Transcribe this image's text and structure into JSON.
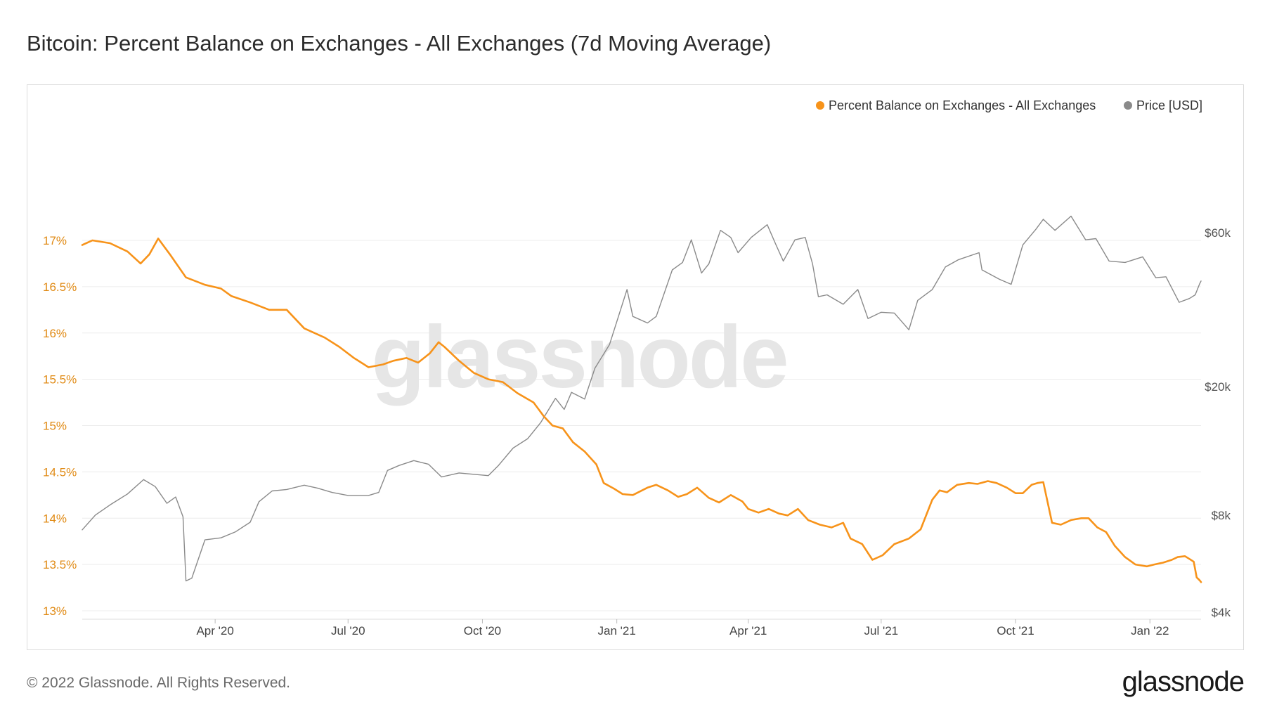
{
  "page": {
    "title": "Bitcoin: Percent Balance on Exchanges - All Exchanges (7d Moving Average)",
    "footer": "© 2022 Glassnode. All Rights Reserved.",
    "logo": "glassnode",
    "watermark": "glassnode"
  },
  "chart_data": {
    "type": "line",
    "title": "Bitcoin: Percent Balance on Exchanges - All Exchanges (7d Moving Average)",
    "xlim": [
      "2020-01-01",
      "2022-02-05"
    ],
    "x_ticks": [
      {
        "date": "2020-04-01",
        "label": "Apr '20"
      },
      {
        "date": "2020-07-01",
        "label": "Jul '20"
      },
      {
        "date": "2020-10-01",
        "label": "Oct '20"
      },
      {
        "date": "2021-01-01",
        "label": "Jan '21"
      },
      {
        "date": "2021-04-01",
        "label": "Apr '21"
      },
      {
        "date": "2021-07-01",
        "label": "Jul '21"
      },
      {
        "date": "2021-10-01",
        "label": "Oct '21"
      },
      {
        "date": "2022-01-01",
        "label": "Jan '22"
      }
    ],
    "y_left": {
      "min": 13.0,
      "max": 17.0,
      "unit": "%",
      "ticks": [
        {
          "value": 13.0,
          "label": "13%"
        },
        {
          "value": 13.5,
          "label": "13.5%"
        },
        {
          "value": 14.0,
          "label": "14%"
        },
        {
          "value": 14.5,
          "label": "14.5%"
        },
        {
          "value": 15.0,
          "label": "15%"
        },
        {
          "value": 15.5,
          "label": "15.5%"
        },
        {
          "value": 16.0,
          "label": "16%"
        },
        {
          "value": 16.5,
          "label": "16.5%"
        },
        {
          "value": 17.0,
          "label": "17%"
        }
      ]
    },
    "y_right": {
      "scale": "log",
      "min": 4000,
      "max": 60000,
      "unit": "USD",
      "ticks": [
        {
          "value": 4000,
          "label": "$4k"
        },
        {
          "value": 8000,
          "label": "$8k"
        },
        {
          "value": 20000,
          "label": "$20k"
        },
        {
          "value": 60000,
          "label": "$60k"
        }
      ]
    },
    "grid": "horizontal",
    "legend_position": "top-right",
    "series": [
      {
        "name": "Percent Balance on Exchanges - All Exchanges",
        "color": "#f7931a",
        "axis": "left",
        "points": [
          [
            "2020-01-01",
            16.95
          ],
          [
            "2020-01-08",
            17.0
          ],
          [
            "2020-01-20",
            16.97
          ],
          [
            "2020-02-01",
            16.88
          ],
          [
            "2020-02-10",
            16.75
          ],
          [
            "2020-02-16",
            16.85
          ],
          [
            "2020-02-22",
            17.02
          ],
          [
            "2020-03-01",
            16.85
          ],
          [
            "2020-03-12",
            16.6
          ],
          [
            "2020-03-25",
            16.52
          ],
          [
            "2020-04-05",
            16.48
          ],
          [
            "2020-04-12",
            16.4
          ],
          [
            "2020-04-25",
            16.33
          ],
          [
            "2020-05-08",
            16.25
          ],
          [
            "2020-05-20",
            16.25
          ],
          [
            "2020-06-01",
            16.05
          ],
          [
            "2020-06-15",
            15.95
          ],
          [
            "2020-06-25",
            15.85
          ],
          [
            "2020-07-05",
            15.73
          ],
          [
            "2020-07-15",
            15.63
          ],
          [
            "2020-07-25",
            15.66
          ],
          [
            "2020-08-01",
            15.7
          ],
          [
            "2020-08-10",
            15.73
          ],
          [
            "2020-08-18",
            15.68
          ],
          [
            "2020-08-26",
            15.78
          ],
          [
            "2020-09-01",
            15.9
          ],
          [
            "2020-09-05",
            15.85
          ],
          [
            "2020-09-15",
            15.7
          ],
          [
            "2020-09-25",
            15.57
          ],
          [
            "2020-10-05",
            15.5
          ],
          [
            "2020-10-15",
            15.47
          ],
          [
            "2020-10-25",
            15.35
          ],
          [
            "2020-11-05",
            15.25
          ],
          [
            "2020-11-12",
            15.1
          ],
          [
            "2020-11-18",
            15.0
          ],
          [
            "2020-11-25",
            14.97
          ],
          [
            "2020-12-02",
            14.82
          ],
          [
            "2020-12-10",
            14.72
          ],
          [
            "2020-12-18",
            14.58
          ],
          [
            "2020-12-23",
            14.38
          ],
          [
            "2020-12-30",
            14.32
          ],
          [
            "2021-01-05",
            14.26
          ],
          [
            "2021-01-12",
            14.25
          ],
          [
            "2021-01-22",
            14.33
          ],
          [
            "2021-01-28",
            14.36
          ],
          [
            "2021-02-05",
            14.3
          ],
          [
            "2021-02-12",
            14.23
          ],
          [
            "2021-02-18",
            14.26
          ],
          [
            "2021-02-25",
            14.33
          ],
          [
            "2021-03-05",
            14.22
          ],
          [
            "2021-03-12",
            14.17
          ],
          [
            "2021-03-20",
            14.25
          ],
          [
            "2021-03-28",
            14.18
          ],
          [
            "2021-04-01",
            14.1
          ],
          [
            "2021-04-08",
            14.06
          ],
          [
            "2021-04-15",
            14.1
          ],
          [
            "2021-04-22",
            14.05
          ],
          [
            "2021-04-28",
            14.03
          ],
          [
            "2021-05-05",
            14.1
          ],
          [
            "2021-05-12",
            13.98
          ],
          [
            "2021-05-20",
            13.93
          ],
          [
            "2021-05-28",
            13.9
          ],
          [
            "2021-06-05",
            13.95
          ],
          [
            "2021-06-10",
            13.78
          ],
          [
            "2021-06-18",
            13.72
          ],
          [
            "2021-06-25",
            13.55
          ],
          [
            "2021-07-02",
            13.6
          ],
          [
            "2021-07-10",
            13.72
          ],
          [
            "2021-07-20",
            13.78
          ],
          [
            "2021-07-28",
            13.88
          ],
          [
            "2021-08-05",
            14.2
          ],
          [
            "2021-08-10",
            14.3
          ],
          [
            "2021-08-15",
            14.28
          ],
          [
            "2021-08-22",
            14.36
          ],
          [
            "2021-08-30",
            14.38
          ],
          [
            "2021-09-05",
            14.37
          ],
          [
            "2021-09-12",
            14.4
          ],
          [
            "2021-09-18",
            14.38
          ],
          [
            "2021-09-25",
            14.33
          ],
          [
            "2021-10-01",
            14.27
          ],
          [
            "2021-10-06",
            14.27
          ],
          [
            "2021-10-12",
            14.36
          ],
          [
            "2021-10-16",
            14.38
          ],
          [
            "2021-10-20",
            14.39
          ],
          [
            "2021-10-26",
            13.95
          ],
          [
            "2021-11-01",
            13.93
          ],
          [
            "2021-11-08",
            13.98
          ],
          [
            "2021-11-15",
            14.0
          ],
          [
            "2021-11-20",
            14.0
          ],
          [
            "2021-11-26",
            13.9
          ],
          [
            "2021-12-02",
            13.85
          ],
          [
            "2021-12-08",
            13.7
          ],
          [
            "2021-12-15",
            13.58
          ],
          [
            "2021-12-22",
            13.5
          ],
          [
            "2021-12-30",
            13.48
          ],
          [
            "2022-01-04",
            13.5
          ],
          [
            "2022-01-10",
            13.52
          ],
          [
            "2022-01-16",
            13.55
          ],
          [
            "2022-01-20",
            13.58
          ],
          [
            "2022-01-25",
            13.59
          ],
          [
            "2022-01-28",
            13.56
          ],
          [
            "2022-01-31",
            13.53
          ],
          [
            "2022-02-02",
            13.36
          ],
          [
            "2022-02-04",
            13.33
          ],
          [
            "2022-02-05",
            13.31
          ]
        ]
      },
      {
        "name": "Price [USD]",
        "color": "#8a8a8a",
        "axis": "right",
        "points": [
          [
            "2020-01-01",
            7200
          ],
          [
            "2020-01-10",
            8000
          ],
          [
            "2020-01-20",
            8600
          ],
          [
            "2020-02-01",
            9300
          ],
          [
            "2020-02-12",
            10300
          ],
          [
            "2020-02-20",
            9800
          ],
          [
            "2020-02-28",
            8700
          ],
          [
            "2020-03-05",
            9100
          ],
          [
            "2020-03-10",
            7900
          ],
          [
            "2020-03-12",
            5000
          ],
          [
            "2020-03-16",
            5100
          ],
          [
            "2020-03-25",
            6700
          ],
          [
            "2020-04-05",
            6800
          ],
          [
            "2020-04-15",
            7100
          ],
          [
            "2020-04-25",
            7600
          ],
          [
            "2020-05-01",
            8800
          ],
          [
            "2020-05-10",
            9500
          ],
          [
            "2020-05-20",
            9600
          ],
          [
            "2020-06-01",
            9900
          ],
          [
            "2020-06-10",
            9700
          ],
          [
            "2020-06-20",
            9400
          ],
          [
            "2020-07-01",
            9200
          ],
          [
            "2020-07-15",
            9200
          ],
          [
            "2020-07-22",
            9400
          ],
          [
            "2020-07-28",
            11000
          ],
          [
            "2020-08-05",
            11400
          ],
          [
            "2020-08-15",
            11800
          ],
          [
            "2020-08-25",
            11500
          ],
          [
            "2020-09-03",
            10500
          ],
          [
            "2020-09-15",
            10800
          ],
          [
            "2020-09-25",
            10700
          ],
          [
            "2020-10-05",
            10600
          ],
          [
            "2020-10-12",
            11400
          ],
          [
            "2020-10-22",
            12900
          ],
          [
            "2020-11-01",
            13800
          ],
          [
            "2020-11-10",
            15500
          ],
          [
            "2020-11-20",
            18400
          ],
          [
            "2020-11-26",
            17000
          ],
          [
            "2020-12-01",
            19200
          ],
          [
            "2020-12-10",
            18300
          ],
          [
            "2020-12-17",
            22800
          ],
          [
            "2020-12-27",
            27000
          ],
          [
            "2021-01-08",
            40000
          ],
          [
            "2021-01-12",
            33000
          ],
          [
            "2021-01-22",
            31500
          ],
          [
            "2021-01-28",
            33000
          ],
          [
            "2021-02-08",
            46000
          ],
          [
            "2021-02-15",
            48500
          ],
          [
            "2021-02-21",
            57000
          ],
          [
            "2021-02-28",
            45000
          ],
          [
            "2021-03-05",
            48000
          ],
          [
            "2021-03-13",
            61000
          ],
          [
            "2021-03-20",
            58000
          ],
          [
            "2021-03-25",
            52000
          ],
          [
            "2021-04-03",
            58000
          ],
          [
            "2021-04-14",
            63500
          ],
          [
            "2021-04-20",
            55000
          ],
          [
            "2021-04-25",
            49000
          ],
          [
            "2021-05-03",
            57000
          ],
          [
            "2021-05-10",
            58000
          ],
          [
            "2021-05-15",
            48000
          ],
          [
            "2021-05-19",
            38000
          ],
          [
            "2021-05-25",
            38500
          ],
          [
            "2021-06-05",
            36000
          ],
          [
            "2021-06-15",
            40000
          ],
          [
            "2021-06-22",
            32500
          ],
          [
            "2021-07-01",
            34000
          ],
          [
            "2021-07-10",
            33800
          ],
          [
            "2021-07-20",
            30000
          ],
          [
            "2021-07-26",
            37000
          ],
          [
            "2021-08-05",
            40000
          ],
          [
            "2021-08-14",
            47000
          ],
          [
            "2021-08-23",
            49500
          ],
          [
            "2021-09-06",
            52000
          ],
          [
            "2021-09-08",
            46000
          ],
          [
            "2021-09-20",
            43000
          ],
          [
            "2021-09-28",
            41500
          ],
          [
            "2021-10-06",
            55000
          ],
          [
            "2021-10-15",
            61500
          ],
          [
            "2021-10-20",
            66000
          ],
          [
            "2021-10-28",
            61000
          ],
          [
            "2021-11-08",
            67500
          ],
          [
            "2021-11-18",
            57000
          ],
          [
            "2021-11-25",
            57500
          ],
          [
            "2021-12-04",
            49000
          ],
          [
            "2021-12-15",
            48500
          ],
          [
            "2021-12-27",
            50500
          ],
          [
            "2022-01-05",
            43500
          ],
          [
            "2022-01-12",
            43800
          ],
          [
            "2022-01-21",
            36500
          ],
          [
            "2022-01-28",
            37500
          ],
          [
            "2022-02-01",
            38500
          ],
          [
            "2022-02-04",
            41600
          ],
          [
            "2022-02-05",
            42500
          ]
        ]
      }
    ]
  }
}
